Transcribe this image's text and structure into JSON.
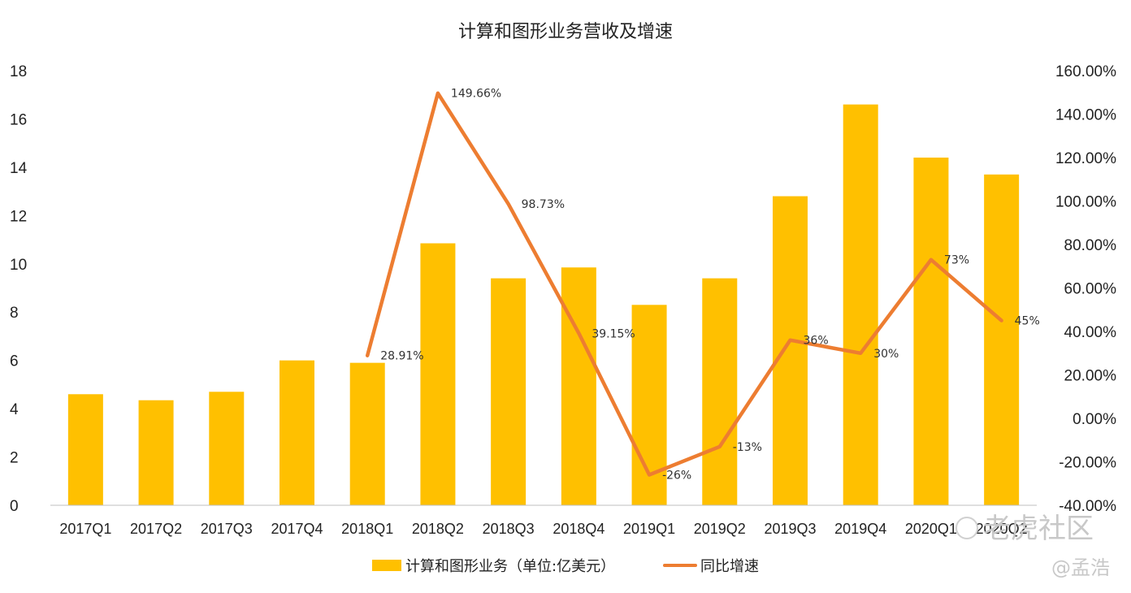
{
  "chart_data": {
    "type": "bar",
    "title": "计算和图形业务营收及增速",
    "categories": [
      "2017Q1",
      "2017Q2",
      "2017Q3",
      "2017Q4",
      "2018Q1",
      "2018Q2",
      "2018Q3",
      "2018Q4",
      "2019Q1",
      "2019Q2",
      "2019Q3",
      "2019Q4",
      "2020Q1",
      "2020Q2"
    ],
    "series": [
      {
        "name": "计算和图形业务（单位:亿美元）",
        "type": "bar",
        "axis": "left",
        "color": "#FFC000",
        "values": [
          4.6,
          4.35,
          4.7,
          6.0,
          5.9,
          10.85,
          9.4,
          9.85,
          8.3,
          9.4,
          12.8,
          16.6,
          14.4,
          13.7
        ]
      },
      {
        "name": "同比增速",
        "type": "line",
        "axis": "right",
        "color": "#ED7D31",
        "values": [
          null,
          null,
          null,
          null,
          28.91,
          149.66,
          98.73,
          39.15,
          -26,
          -13,
          36,
          30,
          73,
          45
        ],
        "labels": [
          "",
          "",
          "",
          "",
          "28.91%",
          "149.66%",
          "98.73%",
          "39.15%",
          "-26%",
          "-13%",
          "36%",
          "30%",
          "73%",
          "45%"
        ]
      }
    ],
    "y_left": {
      "ylim": [
        0,
        18
      ],
      "ticks": [
        "0",
        "2",
        "4",
        "6",
        "8",
        "10",
        "12",
        "14",
        "16",
        "18"
      ]
    },
    "y_right": {
      "ylim": [
        -40,
        160
      ],
      "ticks": [
        "-40.00%",
        "-20.00%",
        "0.00%",
        "20.00%",
        "40.00%",
        "60.00%",
        "80.00%",
        "100.00%",
        "120.00%",
        "140.00%",
        "160.00%"
      ]
    },
    "grid": false,
    "legend_position": "bottom"
  },
  "watermark": {
    "brand": "老虎社区",
    "author": "@孟浩"
  }
}
